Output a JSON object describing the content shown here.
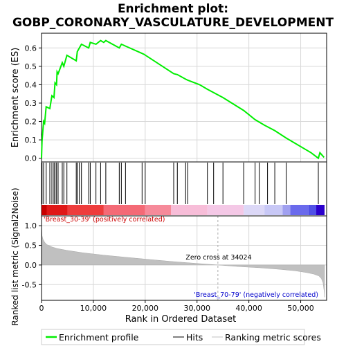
{
  "title_line1": "Enrichment plot:",
  "title_line2": "GOBP_CORONARY_VASCULATURE_DEVELOPMENT",
  "chart_data": [
    {
      "type": "line",
      "panel": "enrichment",
      "ylabel": "Enrichment score (ES)",
      "ylim": [
        -0.02,
        0.68
      ],
      "xlim": [
        0,
        55000
      ],
      "yticks": [
        0.0,
        0.1,
        0.2,
        0.3,
        0.4,
        0.5,
        0.6
      ],
      "ytick_labels": [
        "0.0",
        "0.1",
        "0.2",
        "0.3",
        "0.4",
        "0.5",
        "0.6"
      ],
      "grid": true,
      "series": [
        {
          "name": "Enrichment profile",
          "color": "#00ee00",
          "x": [
            0,
            100,
            400,
            600,
            900,
            1600,
            2000,
            2400,
            2600,
            2900,
            3000,
            3200,
            4000,
            4300,
            4900,
            6700,
            6900,
            7300,
            7700,
            9100,
            9400,
            10500,
            11400,
            12000,
            12400,
            15000,
            15400,
            16200,
            19400,
            19800,
            25500,
            26200,
            27800,
            28200,
            30500,
            32000,
            35000,
            39000,
            41200,
            43000,
            45000,
            47200,
            52000,
            53400,
            53700,
            54500
          ],
          "y": [
            0.0,
            0.09,
            0.2,
            0.19,
            0.28,
            0.27,
            0.34,
            0.33,
            0.41,
            0.4,
            0.47,
            0.46,
            0.52,
            0.5,
            0.56,
            0.53,
            0.58,
            0.6,
            0.62,
            0.6,
            0.63,
            0.62,
            0.64,
            0.63,
            0.64,
            0.6,
            0.62,
            0.61,
            0.57,
            0.565,
            0.46,
            0.455,
            0.43,
            0.425,
            0.4,
            0.375,
            0.33,
            0.26,
            0.21,
            0.18,
            0.15,
            0.11,
            0.03,
            0.0,
            0.03,
            0.005
          ]
        }
      ]
    },
    {
      "type": "rug",
      "panel": "hits",
      "hits": [
        100,
        400,
        900,
        1600,
        2000,
        2400,
        2600,
        2900,
        3200,
        4000,
        4300,
        4900,
        6700,
        6900,
        7300,
        7700,
        9100,
        9400,
        10500,
        11400,
        12400,
        15000,
        15400,
        16200,
        19400,
        20000,
        25500,
        26200,
        27800,
        28200,
        32000,
        33200,
        35000,
        39000,
        41200,
        42000,
        43600,
        45000,
        47200,
        53400
      ]
    },
    {
      "type": "area",
      "panel": "ranked-metric",
      "ylabel": "Ranked list metric (Signal2Noise)",
      "xlabel": "Rank in Ordered Dataset",
      "xlim": [
        0,
        55000
      ],
      "ylim": [
        -0.9,
        1.25
      ],
      "xticks": [
        0,
        10000,
        20000,
        30000,
        40000,
        50000
      ],
      "xtick_labels": [
        "0",
        "10,000",
        "20,000",
        "30,000",
        "40,000",
        "50,000"
      ],
      "yticks": [
        -0.5,
        0.0,
        0.5,
        1.0
      ],
      "ytick_labels": [
        "-0.5",
        "0.0",
        "0.5",
        "1.0"
      ],
      "color": "#c0c0c0",
      "x": [
        0,
        100,
        300,
        600,
        1000,
        2000,
        3000,
        5000,
        8000,
        12000,
        16000,
        20000,
        25000,
        30000,
        34024,
        38000,
        42000,
        46000,
        49000,
        51000,
        52500,
        53500,
        54000,
        54300,
        54500,
        54600
      ],
      "y": [
        1.1,
        0.75,
        0.65,
        0.58,
        0.52,
        0.46,
        0.42,
        0.37,
        0.31,
        0.25,
        0.2,
        0.15,
        0.09,
        0.04,
        0.0,
        -0.04,
        -0.07,
        -0.11,
        -0.15,
        -0.19,
        -0.23,
        -0.28,
        -0.35,
        -0.45,
        -0.65,
        -0.82
      ],
      "zero_cross_label": "Zero cross at 34024",
      "zero_cross": 34024,
      "pos_label": "'Breast_30-39' (positively correlated)",
      "neg_label": "'Breast_70-79' (negatively correlated)"
    }
  ],
  "colors": {
    "enrichment": "#00ee00",
    "pos_text": "#cc0000",
    "neg_text": "#0000cc",
    "grid": "#d8d8d8",
    "metric_fill": "#c0c0c0"
  },
  "heat_bar": {
    "segments": [
      {
        "from": 0,
        "to": 1000,
        "color": "#c80000"
      },
      {
        "from": 1000,
        "to": 5000,
        "color": "#e01818"
      },
      {
        "from": 5000,
        "to": 12000,
        "color": "#ee3c3c"
      },
      {
        "from": 12000,
        "to": 20000,
        "color": "#f46a76"
      },
      {
        "from": 20000,
        "to": 25000,
        "color": "#f68a9a"
      },
      {
        "from": 25000,
        "to": 32000,
        "color": "#f7bdd8"
      },
      {
        "from": 32000,
        "to": 39000,
        "color": "#f4c8e6"
      },
      {
        "from": 39000,
        "to": 43000,
        "color": "#dcd8f7"
      },
      {
        "from": 43000,
        "to": 46500,
        "color": "#c8c8f6"
      },
      {
        "from": 46500,
        "to": 48000,
        "color": "#a0a0f0"
      },
      {
        "from": 48000,
        "to": 51500,
        "color": "#6a6aec"
      },
      {
        "from": 51500,
        "to": 53000,
        "color": "#5050e6"
      },
      {
        "from": 53000,
        "to": 54600,
        "color": "#2a00cc"
      }
    ]
  },
  "legend": {
    "items": [
      {
        "label": "Enrichment profile",
        "color": "#00ee00",
        "style": "thick"
      },
      {
        "label": "Hits",
        "color": "#000000",
        "style": "thin"
      },
      {
        "label": "Ranking metric scores",
        "color": "#c0c0c0",
        "style": "thin"
      }
    ]
  }
}
